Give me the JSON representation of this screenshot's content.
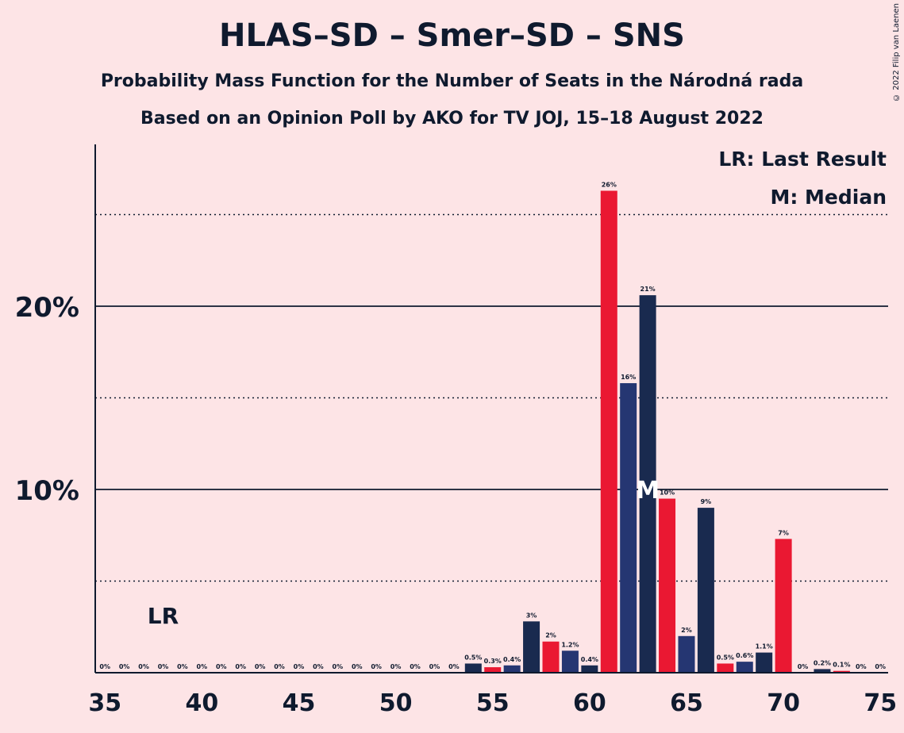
{
  "title": "HLAS–SD – Smer–SD – SNS",
  "subtitle": "Probability Mass Function for the Number of Seats in the Národná rada",
  "subtitle2": "Based on an Opinion Poll by AKO for TV JOJ, 15–18 August 2022",
  "copyright": "© 2022 Filip van Laenen",
  "legend": {
    "last_result": "LR: Last Result",
    "median": "M: Median"
  },
  "markers": {
    "last_result_label": "LR",
    "last_result_seat": 38,
    "median_label": "M",
    "median_seat": 63
  },
  "colors": {
    "red": "#ea1832",
    "blue": "#253672",
    "navy": "#192a4f",
    "background": "#fde4e6"
  },
  "chart_data": {
    "type": "bar",
    "x": [
      35,
      36,
      37,
      38,
      39,
      40,
      41,
      42,
      43,
      44,
      45,
      46,
      47,
      48,
      49,
      50,
      51,
      52,
      53,
      54,
      55,
      56,
      57,
      58,
      59,
      60,
      61,
      62,
      63,
      64,
      65,
      66,
      67,
      68,
      69,
      70,
      71,
      72,
      73,
      74,
      75
    ],
    "values": [
      0,
      0,
      0,
      0,
      0,
      0,
      0,
      0,
      0,
      0,
      0,
      0,
      0,
      0,
      0,
      0,
      0,
      0,
      0,
      0.5,
      0.3,
      0.4,
      2.8,
      1.7,
      1.2,
      0.4,
      26.3,
      15.8,
      20.6,
      9.5,
      2.0,
      9.0,
      0.5,
      0.6,
      1.1,
      7.3,
      0,
      0.2,
      0.1,
      0,
      0
    ],
    "labels": [
      "0%",
      "0%",
      "0%",
      "0%",
      "0%",
      "0%",
      "0%",
      "0%",
      "0%",
      "0%",
      "0%",
      "0%",
      "0%",
      "0%",
      "0%",
      "0%",
      "0%",
      "0%",
      "0%",
      "0.5%",
      "0.3%",
      "0.4%",
      "3%",
      "2%",
      "1.2%",
      "0.4%",
      "26%",
      "16%",
      "21%",
      "10%",
      "2%",
      "9%",
      "0.5%",
      "0.6%",
      "1.1%",
      "7%",
      "0%",
      "0.2%",
      "0.1%",
      "0%",
      "0%"
    ],
    "bar_colors": [
      "navy",
      "red",
      "blue",
      "navy",
      "red",
      "blue",
      "navy",
      "red",
      "blue",
      "navy",
      "red",
      "blue",
      "navy",
      "red",
      "blue",
      "navy",
      "red",
      "blue",
      "navy",
      "navy",
      "red",
      "blue",
      "navy",
      "red",
      "blue",
      "navy",
      "red",
      "blue",
      "navy",
      "red",
      "blue",
      "navy",
      "red",
      "blue",
      "navy",
      "red",
      "blue",
      "navy",
      "red",
      "blue",
      "navy"
    ],
    "xticks": [
      "35",
      "40",
      "45",
      "50",
      "55",
      "60",
      "65",
      "70",
      "75"
    ],
    "yticks": [
      "10%",
      "20%"
    ],
    "ylim": [
      0,
      28.5
    ],
    "grid": {
      "solid": [
        10,
        20
      ],
      "dotted": [
        5,
        15,
        25
      ]
    }
  }
}
